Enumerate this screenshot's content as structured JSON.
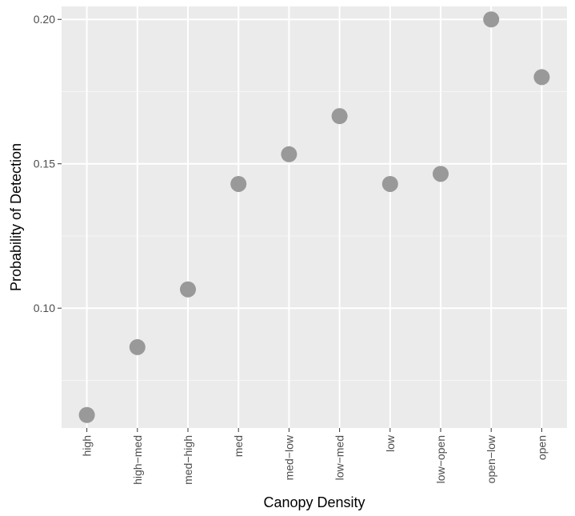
{
  "chart_data": {
    "type": "scatter",
    "title": "",
    "xlabel": "Canopy Density",
    "ylabel": "Probability of Detection",
    "categories": [
      "high",
      "high−med",
      "med−high",
      "med",
      "med−low",
      "low−med",
      "low",
      "low−open",
      "open−low",
      "open"
    ],
    "values": [
      0.063,
      0.0865,
      0.1065,
      0.143,
      0.1533,
      0.1665,
      0.143,
      0.1465,
      0.2,
      0.18
    ],
    "ylim": [
      0.0585,
      0.2045
    ],
    "yticks": [
      0.1,
      0.15,
      0.2
    ],
    "ytick_labels": [
      "0.10",
      "0.15",
      "0.20"
    ],
    "grid": true,
    "legend": "none",
    "colors": {
      "panel_background": "#ebebeb",
      "grid_major": "#ffffff",
      "grid_minor": "#f5f5f5",
      "point": "#999999",
      "axis_text": "#4d4d4d",
      "axis_title": "#000000"
    }
  }
}
